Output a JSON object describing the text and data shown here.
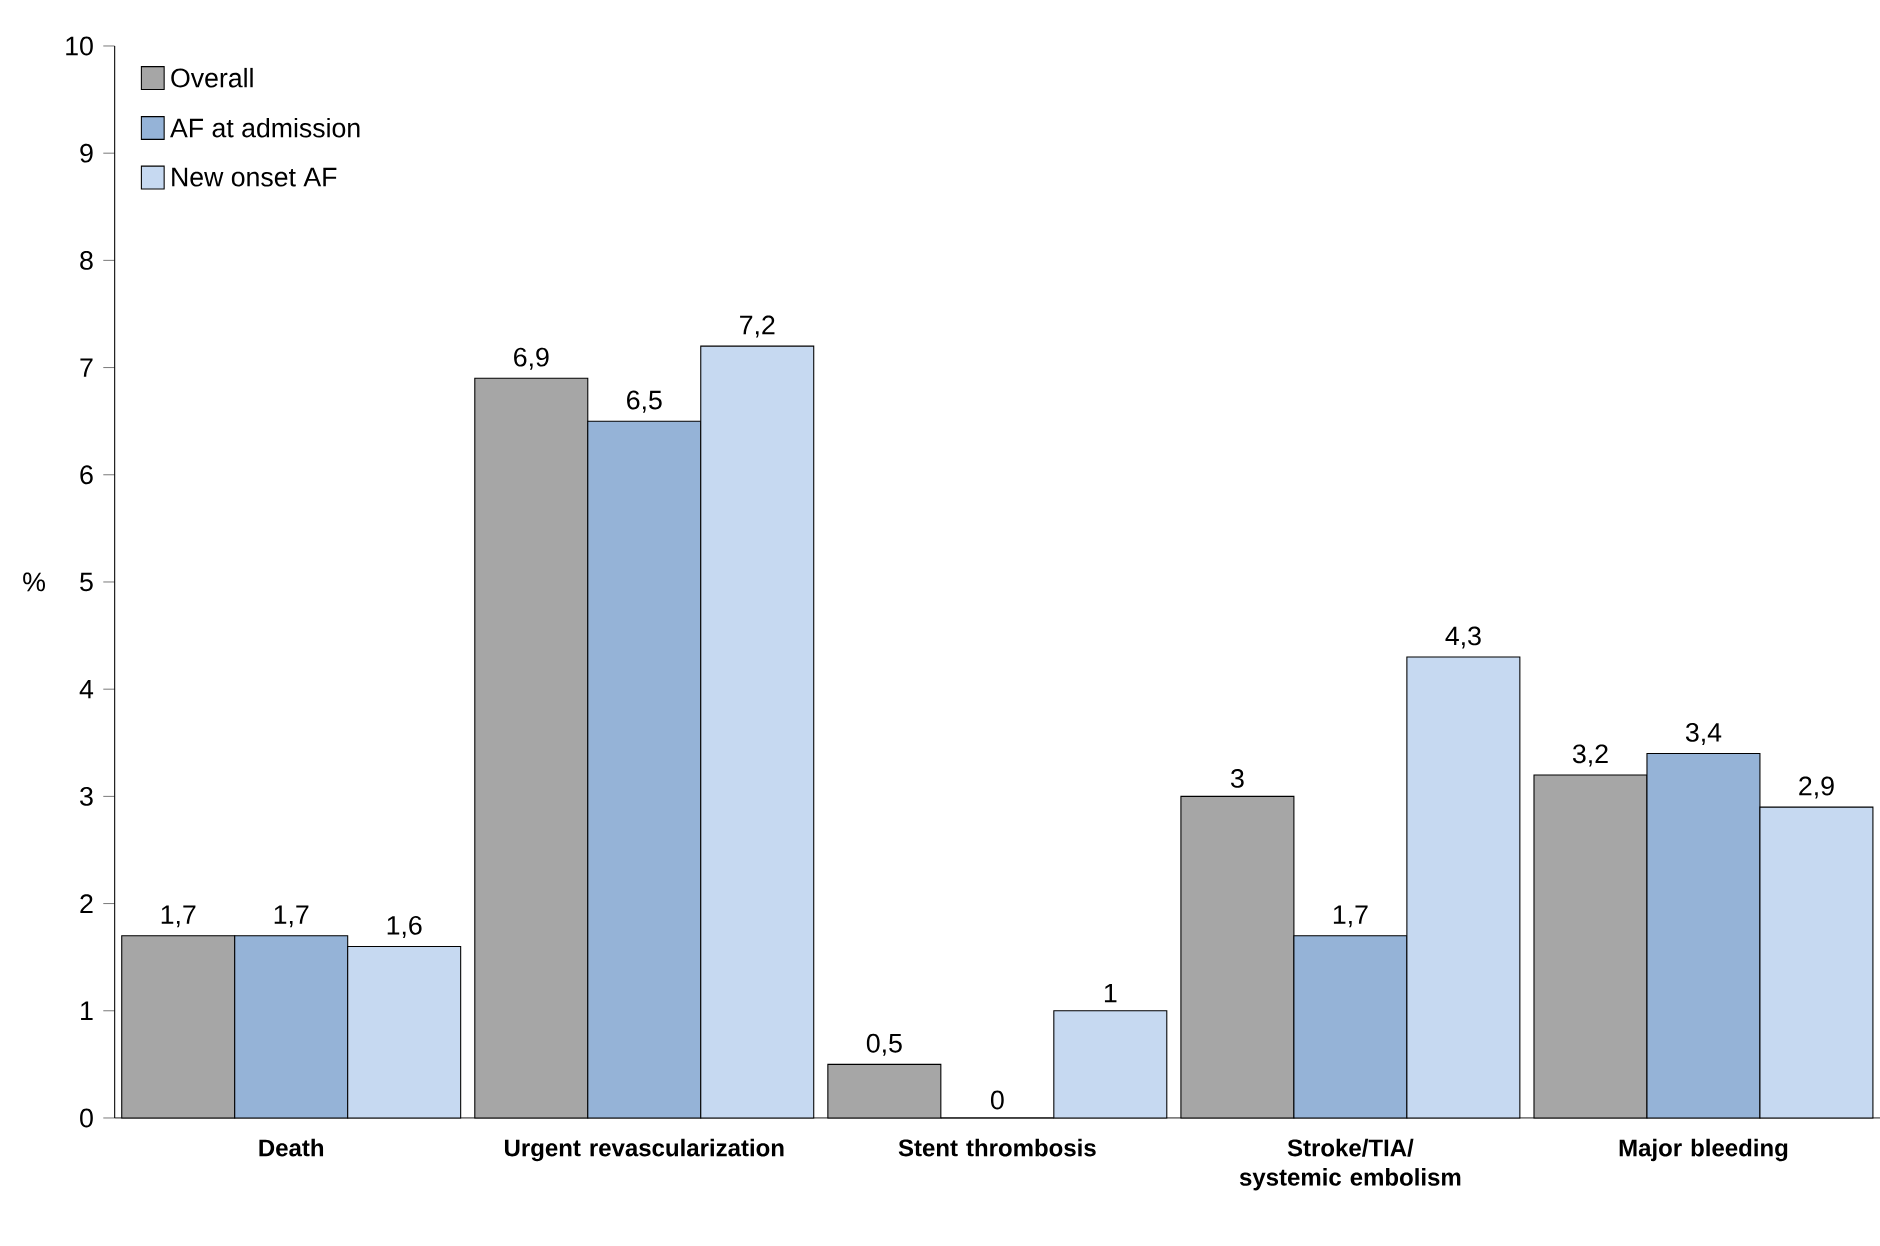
{
  "chart_data": {
    "type": "bar",
    "ylabel": "%",
    "categories": [
      "Death",
      "Urgent revascularization",
      "Stent thrombosis",
      "Stroke/TIA/ systemic embolism",
      "Major bleeding"
    ],
    "series": [
      {
        "name": "Overall",
        "color": "#a6a6a6",
        "values": [
          1.7,
          6.9,
          0.5,
          3,
          3.2
        ],
        "value_labels": [
          "1,7",
          "6,9",
          "0,5",
          "3",
          "3,2"
        ]
      },
      {
        "name": "AF at admission",
        "color": "#95b3d7",
        "values": [
          1.7,
          6.5,
          0,
          1.7,
          3.4
        ],
        "value_labels": [
          "1,7",
          "6,5",
          "0",
          "1,7",
          "3,4"
        ]
      },
      {
        "name": "New onset AF",
        "color": "#c6d9f1",
        "values": [
          1.6,
          7.2,
          1,
          4.3,
          2.9
        ],
        "value_labels": [
          "1,6",
          "7,2",
          "1",
          "4,3",
          "2,9"
        ]
      }
    ],
    "ylim": [
      0,
      10
    ],
    "yticks": [
      0,
      1,
      2,
      3,
      4,
      5,
      6,
      7,
      8,
      9,
      10
    ],
    "grid": false,
    "legend": "top left"
  }
}
